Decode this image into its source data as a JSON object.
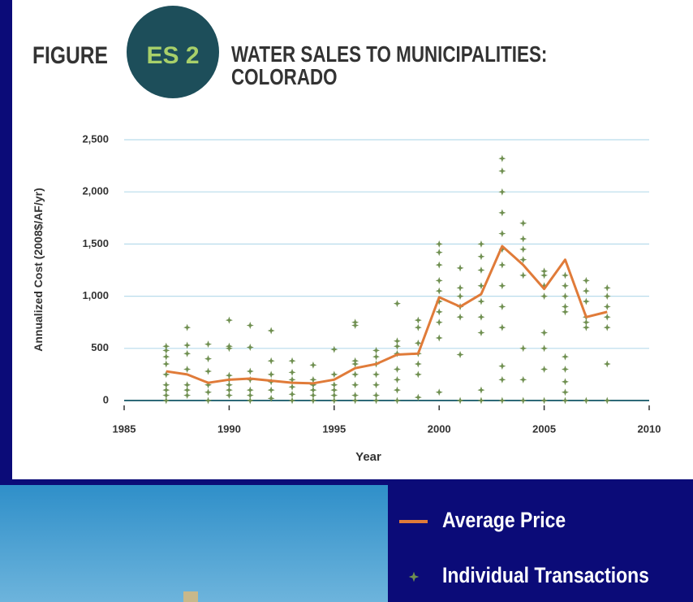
{
  "chart_data": {
    "type": "scatter",
    "figure_label": "FIGURE",
    "figure_number": "ES 2",
    "title": [
      "WATER SALES TO MUNICIPALITIES:",
      "COLORADO"
    ],
    "x_label": "Year",
    "y_label": "Annualized Cost (2008$/AF/yr)",
    "xlim": [
      1985,
      2010
    ],
    "xticks": [
      1985,
      1990,
      1995,
      2000,
      2005,
      2010
    ],
    "ylim": [
      0,
      2500
    ],
    "yticks": [
      0,
      500,
      {
        "value": 1000,
        "label": "1,000"
      },
      {
        "value": 1500,
        "label": "1,500"
      },
      {
        "value": 2000,
        "label": "2,000"
      },
      {
        "value": 2500,
        "label": "2,500"
      }
    ],
    "grid": true,
    "series": [
      {
        "name": "Average Price",
        "type": "line",
        "color": "#e07b39",
        "x": [
          1987,
          1988,
          1989,
          1990,
          1991,
          1992,
          1993,
          1994,
          1995,
          1996,
          1997,
          1998,
          1999,
          2000,
          2001,
          2002,
          2003,
          2004,
          2005,
          2006,
          2007,
          2008
        ],
        "values": [
          280,
          250,
          170,
          200,
          210,
          190,
          170,
          165,
          200,
          310,
          350,
          440,
          450,
          990,
          900,
          1020,
          1480,
          1300,
          1070,
          1350,
          800,
          850
        ]
      },
      {
        "name": "Individual Transactions",
        "type": "scatter",
        "color": "#6f8f50",
        "x": [
          1987,
          1987,
          1987,
          1987,
          1987,
          1987,
          1987,
          1987,
          1987,
          1988,
          1988,
          1988,
          1988,
          1988,
          1988,
          1988,
          1989,
          1989,
          1989,
          1989,
          1989,
          1989,
          1990,
          1990,
          1990,
          1990,
          1990,
          1990,
          1990,
          1990,
          1991,
          1991,
          1991,
          1991,
          1991,
          1991,
          1991,
          1992,
          1992,
          1992,
          1992,
          1992,
          1992,
          1993,
          1993,
          1993,
          1993,
          1993,
          1993,
          1994,
          1994,
          1994,
          1994,
          1994,
          1994,
          1995,
          1995,
          1995,
          1995,
          1995,
          1995,
          1996,
          1996,
          1996,
          1996,
          1996,
          1996,
          1996,
          1996,
          1997,
          1997,
          1997,
          1997,
          1997,
          1997,
          1997,
          1998,
          1998,
          1998,
          1998,
          1998,
          1998,
          1998,
          1998,
          1999,
          1999,
          1999,
          1999,
          1999,
          1999,
          1999,
          2000,
          2000,
          2000,
          2000,
          2000,
          2000,
          2000,
          2000,
          2000,
          2000,
          2001,
          2001,
          2001,
          2001,
          2001,
          2001,
          2001,
          2002,
          2002,
          2002,
          2002,
          2002,
          2002,
          2002,
          2002,
          2002,
          2003,
          2003,
          2003,
          2003,
          2003,
          2003,
          2003,
          2003,
          2003,
          2003,
          2003,
          2003,
          2003,
          2004,
          2004,
          2004,
          2004,
          2004,
          2004,
          2004,
          2004,
          2005,
          2005,
          2005,
          2005,
          2005,
          2005,
          2005,
          2005,
          2006,
          2006,
          2006,
          2006,
          2006,
          2006,
          2006,
          2006,
          2006,
          2006,
          2007,
          2007,
          2007,
          2007,
          2007,
          2007,
          2007,
          2008,
          2008,
          2008,
          2008,
          2008,
          2008,
          2008
        ],
        "values": [
          0,
          50,
          100,
          150,
          250,
          350,
          420,
          480,
          520,
          50,
          100,
          150,
          300,
          450,
          530,
          700,
          0,
          80,
          150,
          280,
          400,
          540,
          50,
          100,
          150,
          200,
          240,
          500,
          520,
          770,
          0,
          50,
          100,
          200,
          280,
          510,
          720,
          20,
          100,
          180,
          250,
          380,
          670,
          0,
          60,
          130,
          200,
          270,
          380,
          0,
          50,
          100,
          150,
          200,
          340,
          0,
          50,
          100,
          150,
          250,
          490,
          0,
          50,
          150,
          250,
          350,
          380,
          720,
          750,
          0,
          50,
          150,
          250,
          350,
          420,
          480,
          0,
          100,
          200,
          300,
          450,
          520,
          570,
          930,
          30,
          250,
          350,
          450,
          550,
          700,
          770,
          80,
          600,
          750,
          850,
          950,
          1050,
          1150,
          1300,
          1420,
          1500,
          0,
          440,
          800,
          900,
          1000,
          1080,
          1270,
          0,
          100,
          650,
          800,
          950,
          1100,
          1250,
          1380,
          1500,
          0,
          200,
          330,
          700,
          900,
          1100,
          1300,
          1450,
          1600,
          1800,
          2000,
          2200,
          2320,
          0,
          200,
          500,
          1200,
          1350,
          1450,
          1550,
          1700,
          0,
          300,
          500,
          650,
          1000,
          1100,
          1200,
          1240,
          0,
          80,
          180,
          300,
          420,
          850,
          900,
          1000,
          1100,
          1200,
          0,
          700,
          750,
          800,
          950,
          1050,
          1150,
          0,
          350,
          700,
          800,
          900,
          1000,
          1080
        ]
      }
    ]
  }
}
